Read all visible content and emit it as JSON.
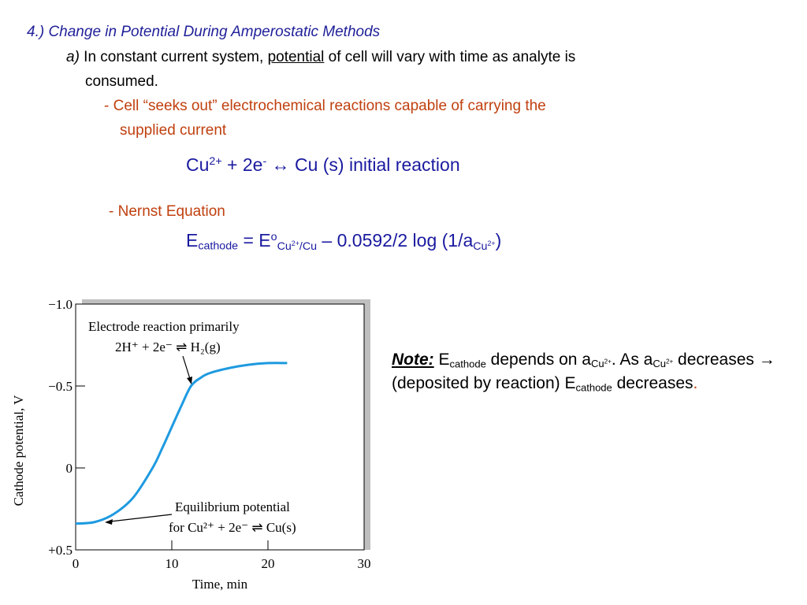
{
  "heading": "4.) Change in Potential During Amperostatic Methods",
  "line_a": {
    "label": "a)",
    "text1": " In constant current system, ",
    "underlined": "potential",
    "text2": " of cell will vary with time as analyte is",
    "text3": "consumed."
  },
  "bullet1": {
    "line1": "- Cell “seeks out” electrochemical reactions capable of carrying the",
    "line2": "supplied current"
  },
  "equation1": {
    "cu": "Cu",
    "cu_charge": "2+",
    "mid": " + 2e",
    "e_charge": "-",
    "rest": " ↔ Cu (s)  initial reaction"
  },
  "bullet2": {
    "dash": "-",
    "text": " Nernst Equation"
  },
  "equation2": {
    "e": "E",
    "e_sub": "cathode",
    "eq": " = E",
    "o": "o",
    "cu_sub": "Cu",
    "cu_sub_charge": "2+",
    "cu_sub_tail": "/Cu",
    "mid": " – 0.0592/2 log (1/a",
    "a_sub": "Cu",
    "a_sub_charge": "2+",
    "close": ")"
  },
  "note": {
    "label": "Note:",
    "e": " E",
    "e_sub": "cathode",
    "t1": " depends on a",
    "a1_sub": "Cu",
    "a1_charge": "2+",
    "t2": ".  As a",
    "a2_sub": "Cu",
    "a2_charge": "2+",
    "t3": " decreases → (deposited by reaction) E",
    "e2_sub": "cathode",
    "t4": " decreases",
    "period": "."
  },
  "colors": {
    "heading": "#1f1f99",
    "accent_red": "#c0400f",
    "equation": "#1a1aa0",
    "curve": "#1e9ae0"
  },
  "chart_data": {
    "type": "line",
    "xlabel": "Time, min",
    "ylabel": "Cathode potential, V",
    "xlim": [
      0,
      30
    ],
    "ylim": [
      0.5,
      -1.0
    ],
    "x_ticks": [
      "0",
      "10",
      "20",
      "30"
    ],
    "y_ticks": [
      "−1.0",
      "−0.5",
      "0",
      "+0.5"
    ],
    "series": [
      {
        "x": [
          0,
          2,
          4,
          6,
          8,
          9,
          10,
          11,
          12,
          13,
          14,
          16,
          18,
          20,
          22
        ],
        "values": [
          0.34,
          0.33,
          0.28,
          0.18,
          0.0,
          -0.12,
          -0.25,
          -0.38,
          -0.5,
          -0.55,
          -0.58,
          -0.61,
          -0.63,
          -0.64,
          -0.64
        ]
      }
    ],
    "annotations": [
      {
        "line1": "Electrode reaction primarily",
        "line2": "2H⁺ + 2e⁻ ⇌ H₂(g)"
      },
      {
        "line1": "Equilibrium potential",
        "line2": "for Cu²⁺ + 2e⁻ ⇌ Cu(s)"
      }
    ]
  }
}
